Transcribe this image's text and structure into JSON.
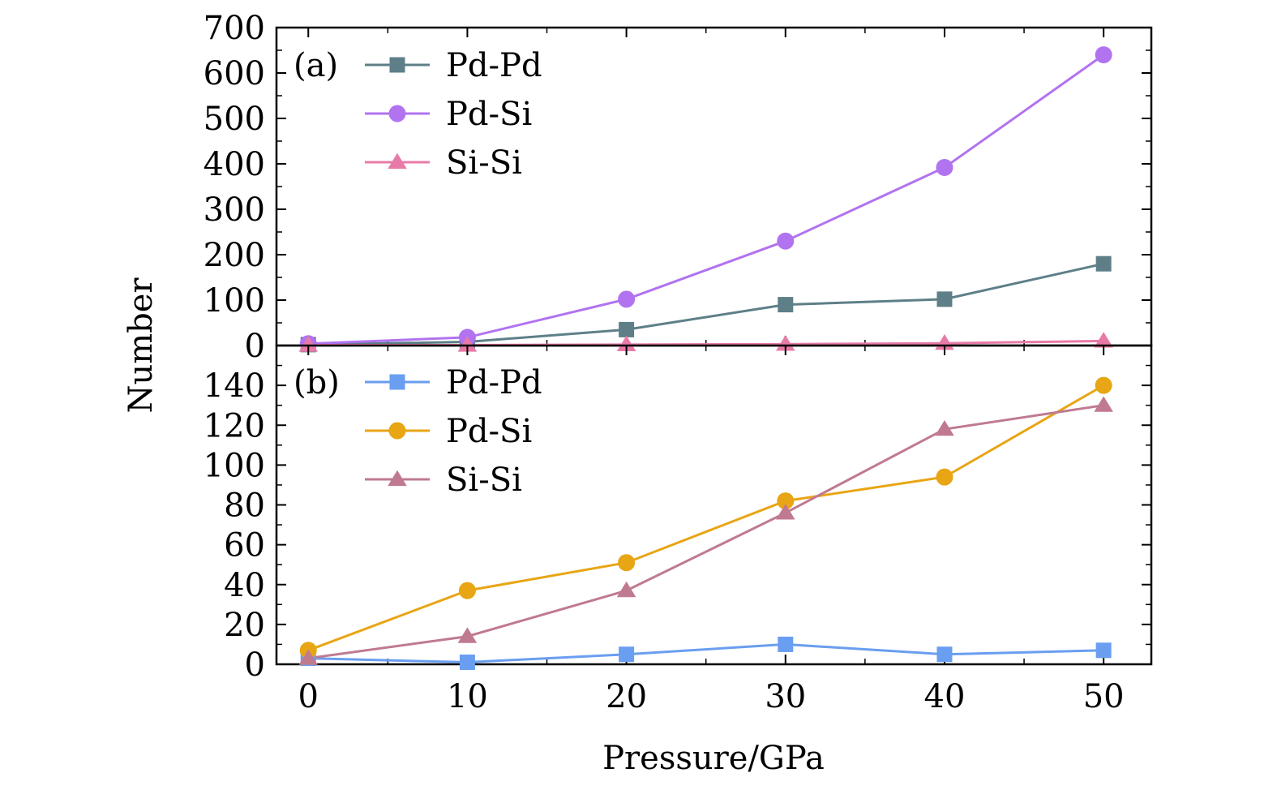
{
  "chart_data": [
    {
      "type": "line",
      "panel_label": "(a)",
      "x": [
        0,
        10,
        20,
        30,
        40,
        50
      ],
      "ylim": [
        0,
        700
      ],
      "yticks": [
        0,
        100,
        200,
        300,
        400,
        500,
        600,
        700
      ],
      "series": [
        {
          "name": "Pd-Pd",
          "color": "#5e7f88",
          "marker": "square",
          "values": [
            2,
            8,
            35,
            90,
            102,
            180
          ]
        },
        {
          "name": "Pd-Si",
          "color": "#b173f0",
          "marker": "circle",
          "values": [
            4,
            18,
            102,
            230,
            392,
            640
          ]
        },
        {
          "name": "Si-Si",
          "color": "#e87aa8",
          "marker": "triangle",
          "values": [
            1,
            1,
            2,
            3,
            5,
            10
          ]
        }
      ],
      "legend_position": "top-left"
    },
    {
      "type": "line",
      "panel_label": "(b)",
      "x": [
        0,
        10,
        20,
        30,
        40,
        50
      ],
      "ylim": [
        0,
        160
      ],
      "yticks": [
        0,
        20,
        40,
        60,
        80,
        100,
        120,
        140
      ],
      "series": [
        {
          "name": "Pd-Pd",
          "color": "#6a9ef0",
          "marker": "square",
          "values": [
            3,
            1,
            5,
            10,
            5,
            7
          ]
        },
        {
          "name": "Pd-Si",
          "color": "#e8a514",
          "marker": "circle",
          "values": [
            7,
            37,
            51,
            82,
            94,
            140
          ]
        },
        {
          "name": "Si-Si",
          "color": "#c07a90",
          "marker": "triangle",
          "values": [
            3,
            14,
            37,
            76,
            118,
            130
          ]
        }
      ],
      "legend_position": "top-left"
    }
  ],
  "axes": {
    "xlabel": "Pressure/GPa",
    "ylabel": "Number",
    "xlim": [
      -2,
      53
    ],
    "xticks": [
      0,
      10,
      20,
      30,
      40,
      50
    ]
  }
}
